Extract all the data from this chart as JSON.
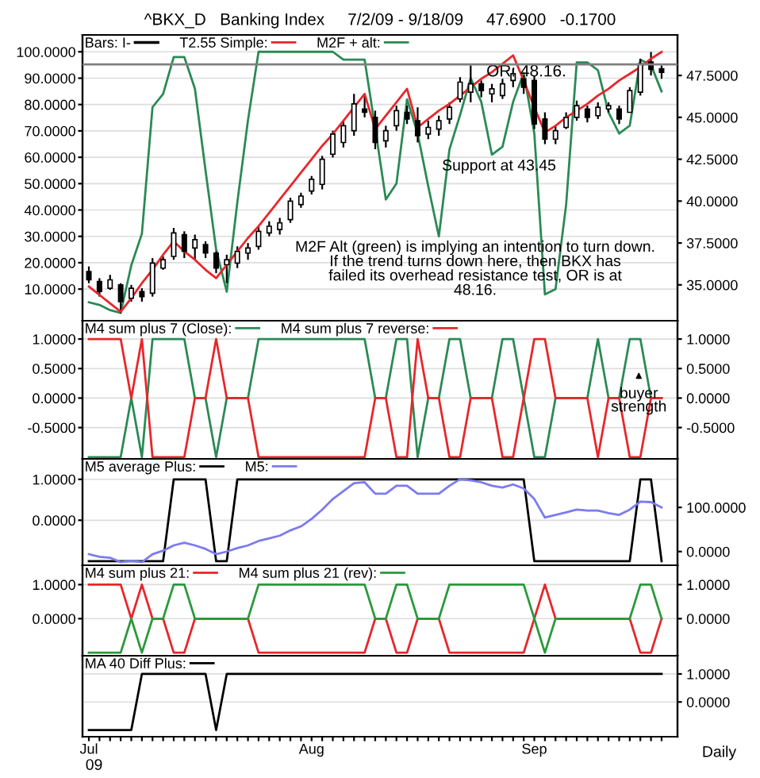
{
  "chart_data": [
    {
      "type": "candlestick",
      "title": "^BKX_D   Banking Index     7/2/09 - 9/18/09     47.6900   -0.1700",
      "series": [
        {
          "name": "Bars: I-",
          "color": "#000000",
          "axis": "y2",
          "ohlc": [
            [
              35.8,
              36.1,
              35.1,
              35.3
            ],
            [
              35.2,
              35.4,
              34.3,
              34.6
            ],
            [
              34.8,
              35.6,
              34.7,
              35.3
            ],
            [
              35.0,
              35.1,
              33.3,
              34.0
            ],
            [
              34.2,
              35.0,
              34.0,
              34.8
            ],
            [
              34.6,
              34.8,
              34.0,
              34.3
            ],
            [
              34.5,
              36.6,
              34.3,
              36.3
            ],
            [
              36.0,
              36.7,
              35.9,
              36.5
            ],
            [
              36.7,
              38.4,
              36.5,
              38.1
            ],
            [
              38.0,
              38.2,
              36.6,
              37.0
            ],
            [
              37.2,
              38.0,
              36.5,
              37.7
            ],
            [
              37.4,
              37.6,
              36.6,
              36.9
            ],
            [
              36.9,
              37.0,
              35.7,
              36.0
            ],
            [
              36.2,
              36.8,
              35.1,
              36.5
            ],
            [
              36.3,
              37.3,
              36.0,
              37.0
            ],
            [
              36.9,
              37.5,
              36.5,
              37.2
            ],
            [
              37.3,
              38.5,
              37.1,
              38.2
            ],
            [
              38.1,
              38.8,
              37.9,
              38.5
            ],
            [
              38.3,
              39.0,
              38.0,
              38.7
            ],
            [
              38.9,
              40.2,
              38.7,
              40.0
            ],
            [
              39.8,
              40.5,
              39.6,
              40.3
            ],
            [
              40.6,
              41.5,
              40.4,
              41.3
            ],
            [
              41.0,
              42.7,
              40.7,
              42.5
            ],
            [
              42.8,
              44.2,
              42.6,
              44.0
            ],
            [
              43.5,
              44.8,
              43.2,
              44.5
            ],
            [
              44.2,
              46.4,
              43.9,
              45.8
            ],
            [
              45.5,
              46.4,
              45.0,
              45.3
            ],
            [
              45.0,
              45.4,
              43.1,
              43.5
            ],
            [
              43.6,
              44.5,
              43.2,
              44.2
            ],
            [
              44.5,
              45.7,
              44.2,
              45.4
            ],
            [
              45.3,
              45.7,
              44.6,
              44.9
            ],
            [
              44.8,
              45.6,
              43.5,
              43.9
            ],
            [
              44.0,
              44.8,
              43.7,
              44.4
            ],
            [
              44.3,
              45.1,
              43.9,
              44.8
            ],
            [
              44.9,
              45.9,
              44.6,
              45.6
            ],
            [
              46.1,
              47.4,
              45.9,
              47.1
            ],
            [
              46.5,
              48.1,
              45.9,
              47.0
            ],
            [
              47.0,
              47.2,
              46.2,
              46.6
            ],
            [
              46.4,
              47.0,
              45.9,
              46.7
            ],
            [
              46.3,
              47.3,
              46.1,
              47.0
            ],
            [
              47.2,
              47.9,
              46.8,
              47.6
            ],
            [
              47.3,
              47.5,
              46.4,
              46.8
            ],
            [
              47.2,
              47.5,
              44.3,
              44.6
            ],
            [
              44.9,
              45.3,
              43.4,
              43.7
            ],
            [
              43.7,
              44.5,
              43.4,
              44.2
            ],
            [
              44.4,
              45.3,
              44.3,
              45.0
            ],
            [
              45.0,
              46.0,
              44.8,
              45.7
            ],
            [
              45.5,
              45.7,
              44.7,
              45.0
            ],
            [
              45.1,
              45.9,
              44.9,
              45.6
            ],
            [
              45.5,
              45.9,
              45.3,
              45.7
            ],
            [
              45.5,
              45.7,
              44.6,
              44.9
            ],
            [
              45.3,
              46.8,
              45.3,
              46.6
            ],
            [
              46.5,
              48.5,
              46.3,
              48.2
            ],
            [
              48.3,
              48.9,
              47.5,
              47.86
            ],
            [
              47.9,
              48.1,
              47.3,
              47.69
            ]
          ]
        },
        {
          "name": "T2.55 Simple:",
          "type": "line",
          "color": "#e8262a",
          "axis": "y2",
          "values": [
            34.9,
            34.4,
            33.9,
            33.4,
            34.2,
            35.1,
            35.9,
            36.8,
            37.6,
            37.0,
            36.5,
            35.9,
            35.4,
            36.2,
            37.0,
            37.8,
            38.5,
            39.3,
            40.1,
            40.9,
            41.7,
            42.5,
            43.3,
            44.0,
            44.8,
            45.6,
            46.4,
            44.3,
            45.1,
            45.9,
            46.7,
            44.4,
            44.9,
            45.4,
            45.8,
            46.3,
            46.8,
            47.3,
            47.7,
            48.2,
            48.7,
            47.2,
            45.6,
            44.1,
            44.5,
            45.0,
            45.4,
            45.8,
            46.3,
            46.7,
            47.2,
            47.6,
            48.0,
            48.5,
            48.9
          ]
        },
        {
          "name": "M2F + alt:",
          "type": "line",
          "color": "#2a8a55",
          "values": [
            5,
            4,
            2,
            1,
            19,
            31,
            79,
            84,
            98,
            98,
            86,
            55,
            25,
            9,
            43,
            74,
            100,
            100,
            100,
            100,
            100,
            100,
            100,
            100,
            97,
            97,
            97,
            71,
            44,
            50,
            82,
            69,
            49,
            30,
            63,
            76,
            90,
            81,
            61,
            64,
            81,
            92,
            69,
            8,
            10,
            42,
            96,
            96,
            93,
            77,
            69,
            72,
            97,
            95,
            85
          ]
        }
      ],
      "ylim": [
        -2,
        106.4
      ],
      "yticks": [
        {
          "value": 10,
          "label": "10.0000"
        },
        {
          "value": 20,
          "label": "20.0000"
        },
        {
          "value": 30,
          "label": "30.0000"
        },
        {
          "value": 40,
          "label": "40.0000"
        },
        {
          "value": 50,
          "label": "50.0000"
        },
        {
          "value": 60,
          "label": "60.0000"
        },
        {
          "value": 70,
          "label": "70.0000"
        },
        {
          "value": 80,
          "label": "80.0000"
        },
        {
          "value": 90,
          "label": "90.0000"
        },
        {
          "value": 100,
          "label": "100.0000"
        }
      ],
      "y2lim": [
        32.86,
        49.92
      ],
      "y2ticks": [
        {
          "value": 35,
          "label": "35.0000"
        },
        {
          "value": 37.5,
          "label": "37.5000"
        },
        {
          "value": 40,
          "label": "40.0000"
        },
        {
          "value": 42.5,
          "label": "42.5000"
        },
        {
          "value": 45,
          "label": "45.0000"
        },
        {
          "value": 47.5,
          "label": "47.5000"
        }
      ],
      "ref_lines": [
        {
          "axis": "y2",
          "value": 48.16,
          "label": "OR: 48.16.",
          "color": "#808080"
        }
      ],
      "annotations": [
        "Support at 43.45",
        "M2F Alt (green) is implying an intention to turn down.\nIf the trend turns down here, then BKX has\nfailed its overhead resistance test, OR is at\n48.16."
      ],
      "grid": "y",
      "legend": "top left",
      "tick_labels": "y"
    },
    {
      "type": "line",
      "series": [
        {
          "name": "M4 sum plus 7 (Close):",
          "color": "#2a8a55",
          "values": [
            -1,
            -1,
            -1,
            -1,
            0,
            -1,
            1,
            1,
            1,
            1,
            0,
            0,
            -1,
            0,
            0,
            0,
            1,
            1,
            1,
            1,
            1,
            1,
            1,
            1,
            1,
            1,
            1,
            0,
            0,
            1,
            1,
            -1,
            0,
            0,
            1,
            1,
            0,
            0,
            0,
            1,
            1,
            0,
            -1,
            -1,
            0,
            0,
            0,
            0,
            1,
            0,
            0,
            1,
            1,
            0,
            0
          ]
        },
        {
          "name": "M4 sum plus 7 reverse:",
          "color": "#e8262a",
          "values": [
            1,
            1,
            1,
            1,
            0,
            1,
            -1,
            -1,
            -1,
            -1,
            0,
            0,
            1,
            0,
            0,
            0,
            -1,
            -1,
            -1,
            -1,
            -1,
            -1,
            -1,
            -1,
            -1,
            -1,
            -1,
            0,
            0,
            -1,
            -1,
            1,
            0,
            0,
            -1,
            -1,
            0,
            0,
            0,
            -1,
            -1,
            0,
            1,
            1,
            0,
            0,
            0,
            0,
            -1,
            0,
            0,
            -1,
            -1,
            0,
            0
          ]
        }
      ],
      "ylim": [
        -1.03,
        1.31
      ],
      "yticks": [
        {
          "value": 1,
          "label": "1.0000"
        },
        {
          "value": 0.5,
          "label": "0.5000"
        },
        {
          "value": 0,
          "label": "0.0000"
        },
        {
          "value": -0.5,
          "label": "-0.5000"
        }
      ],
      "y2lim": [
        -1.03,
        1.31
      ],
      "y2ticks": [
        {
          "value": 1,
          "label": "1.0000"
        },
        {
          "value": 0.5,
          "label": "0.5000"
        },
        {
          "value": 0,
          "label": "0.0000"
        },
        {
          "value": -0.5,
          "label": "-0.5000"
        }
      ],
      "annotations": [
        "buyer\nstrength"
      ],
      "grid": "y",
      "legend": "top left",
      "tick_labels": "y"
    },
    {
      "type": "line",
      "series": [
        {
          "name": "M5 average Plus:",
          "color": "#000000",
          "values": [
            -1,
            -1,
            -1,
            -1,
            -1,
            -1,
            -1,
            -1,
            1,
            1,
            1,
            1,
            -1,
            -1,
            1,
            1,
            1,
            1,
            1,
            1,
            1,
            1,
            1,
            1,
            1,
            1,
            1,
            1,
            1,
            1,
            1,
            1,
            1,
            1,
            1,
            1,
            1,
            1,
            1,
            1,
            1,
            1,
            -1,
            -1,
            -1,
            -1,
            -1,
            -1,
            -1,
            -1,
            -1,
            -1,
            1,
            1,
            -1
          ]
        },
        {
          "name": "M5:",
          "color": "#7b7bef",
          "axis": "y2",
          "values": [
            -6,
            -12,
            -14,
            -24,
            -21,
            -24,
            -6,
            2,
            14,
            20,
            14,
            6,
            -6,
            0,
            8,
            14,
            24,
            30,
            36,
            48,
            57,
            74,
            95,
            119,
            137,
            155,
            157,
            131,
            131,
            149,
            149,
            131,
            131,
            131,
            149,
            164,
            161,
            157,
            149,
            145,
            152,
            143,
            119,
            77,
            83,
            89,
            95,
            93,
            93,
            87,
            83,
            95,
            113,
            112,
            100
          ]
        }
      ],
      "ylim": [
        -1.1,
        1.5
      ],
      "yticks": [
        {
          "value": 1,
          "label": "1.0000"
        },
        {
          "value": 0,
          "label": "0.0000"
        }
      ],
      "y2lim": [
        -31,
        210
      ],
      "y2ticks": [
        {
          "value": 100,
          "label": "100.0000"
        },
        {
          "value": 0,
          "label": "0.0000"
        }
      ],
      "grid": "y",
      "legend": "top left",
      "tick_labels": "y"
    },
    {
      "type": "line",
      "series": [
        {
          "name": "M4 sum plus 21:",
          "color": "#e8262a",
          "values": [
            1,
            1,
            1,
            1,
            0,
            1,
            0,
            0,
            -1,
            -1,
            0,
            0,
            0,
            0,
            0,
            0,
            -1,
            -1,
            -1,
            -1,
            -1,
            -1,
            -1,
            -1,
            -1,
            -1,
            -1,
            0,
            0,
            -1,
            -1,
            0,
            0,
            0,
            -1,
            -1,
            -1,
            -1,
            -1,
            -1,
            -1,
            -1,
            0,
            1,
            0,
            0,
            0,
            0,
            0,
            0,
            0,
            0,
            -1,
            -1,
            0
          ]
        },
        {
          "name": "M4 sum plus 21 (rev):",
          "color": "#2a9a3a",
          "values": [
            -1,
            -1,
            -1,
            -1,
            0,
            -1,
            0,
            0,
            1,
            1,
            0,
            0,
            0,
            0,
            0,
            0,
            1,
            1,
            1,
            1,
            1,
            1,
            1,
            1,
            1,
            1,
            1,
            0,
            0,
            1,
            1,
            0,
            0,
            0,
            1,
            1,
            1,
            1,
            1,
            1,
            1,
            1,
            0,
            -1,
            0,
            0,
            0,
            0,
            0,
            0,
            0,
            0,
            1,
            1,
            0
          ]
        }
      ],
      "ylim": [
        -1.09,
        1.57
      ],
      "yticks": [
        {
          "value": 1,
          "label": "1.0000"
        },
        {
          "value": 0,
          "label": "0.0000"
        }
      ],
      "y2lim": [
        -1.09,
        1.57
      ],
      "y2ticks": [
        {
          "value": 1,
          "label": "1.0000"
        },
        {
          "value": 0,
          "label": "0.0000"
        }
      ],
      "grid": "y",
      "legend": "top left",
      "tick_labels": "y"
    },
    {
      "type": "line",
      "categories": [
        "Jul",
        null,
        null,
        null,
        null,
        null,
        null,
        null,
        null,
        null,
        null,
        null,
        null,
        null,
        null,
        null,
        null,
        null,
        null,
        null,
        null,
        "Aug",
        null,
        null,
        null,
        null,
        null,
        null,
        null,
        null,
        null,
        null,
        null,
        null,
        null,
        null,
        null,
        null,
        null,
        null,
        null,
        null,
        "Sep",
        null,
        null,
        null,
        null,
        null,
        null,
        null,
        null,
        null,
        null,
        null,
        null
      ],
      "series": [
        {
          "name": "MA 40 Diff Plus:",
          "color": "#000000",
          "axis": "y2",
          "values": [
            -1,
            -1,
            -1,
            -1,
            -1,
            1,
            1,
            1,
            1,
            1,
            1,
            1,
            -1,
            1,
            1,
            1,
            1,
            1,
            1,
            1,
            1,
            1,
            1,
            1,
            1,
            1,
            1,
            1,
            1,
            1,
            1,
            1,
            1,
            1,
            1,
            1,
            1,
            1,
            1,
            1,
            1,
            1,
            1,
            1,
            1,
            1,
            1,
            1,
            1,
            1,
            1,
            1,
            1,
            1,
            1
          ]
        }
      ],
      "y2lim": [
        -1.24,
        1.65
      ],
      "y2ticks": [
        {
          "value": 1,
          "label": "1.0000"
        },
        {
          "value": 0,
          "label": "0.0000"
        }
      ],
      "annotations": [
        "09",
        "Daily"
      ],
      "grid": "y",
      "legend": "top left"
    }
  ]
}
